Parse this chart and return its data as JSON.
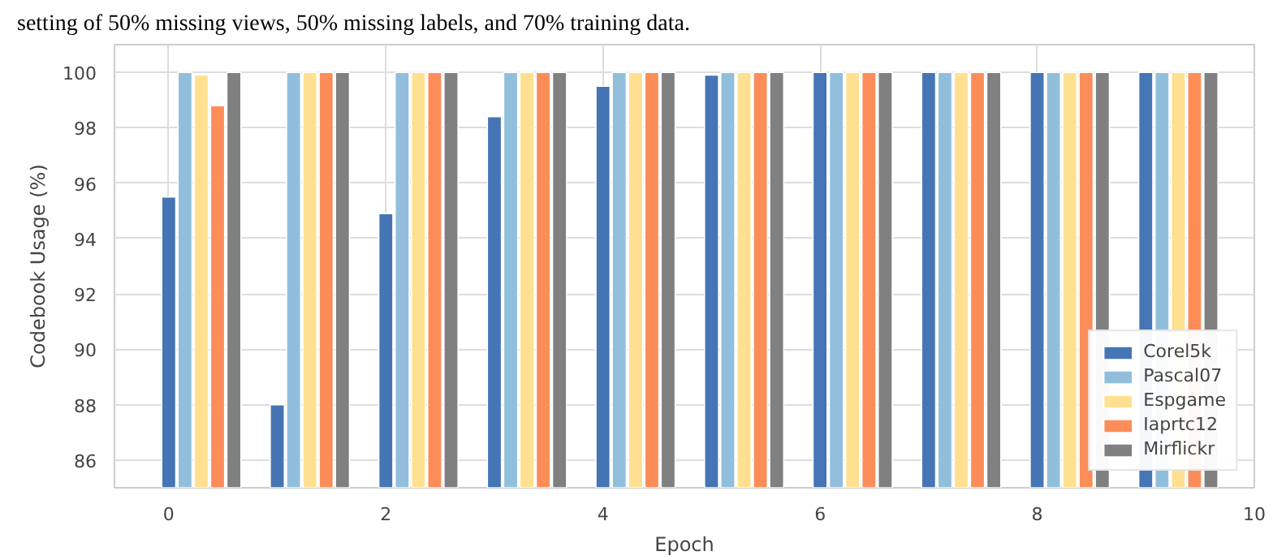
{
  "chart_data": {
    "type": "bar",
    "x": [
      0,
      1,
      2,
      3,
      4,
      5,
      6,
      7,
      8,
      9
    ],
    "xlabel": "Epoch",
    "ylabel": "Codebook Usage (%)",
    "annotations": [
      "setting of 50% missing views, 50% missing labels, and 70% training data."
    ],
    "series": [
      {
        "name": "Corel5k",
        "color": "#4575b4",
        "values": [
          95.5,
          88.0,
          94.9,
          98.4,
          99.5,
          99.9,
          100,
          100,
          100,
          100
        ]
      },
      {
        "name": "Pascal07",
        "color": "#91bfdb",
        "x": [
          0.15,
          1.15,
          2.15,
          3.15,
          4.15,
          5.15,
          6.15,
          7.15,
          8.15,
          9.15
        ],
        "values": [
          100,
          100,
          100,
          100,
          100,
          100,
          100,
          100,
          100,
          100
        ]
      },
      {
        "name": "Espgame",
        "color": "#fee090",
        "x": [
          0.3,
          1.3,
          2.3,
          3.3,
          4.3,
          5.3,
          6.3,
          7.3,
          8.3,
          9.3
        ],
        "values": [
          99.9,
          100,
          100,
          100,
          100,
          100,
          100,
          100,
          100,
          100
        ]
      },
      {
        "name": "Iaprtc12",
        "color": "#fc8d59",
        "x": [
          0.45,
          1.45,
          2.45,
          3.45,
          4.45,
          5.45,
          6.45,
          7.45,
          8.45,
          9.45
        ],
        "values": [
          98.8,
          100,
          100,
          100,
          100,
          100,
          100,
          100,
          100,
          100
        ]
      },
      {
        "name": "Mirflickr",
        "color": "#808080",
        "x": [
          0.6,
          1.6,
          2.6,
          3.6,
          4.6,
          5.6,
          6.6,
          7.6,
          8.6,
          9.6
        ],
        "values": [
          100,
          100,
          100,
          100,
          100,
          100,
          100,
          100,
          100,
          100
        ]
      }
    ],
    "xlim": [
      -0.5,
      10
    ],
    "ylim": [
      85,
      101
    ],
    "xticks": [
      0,
      2,
      4,
      6,
      8,
      10
    ],
    "yticks": [
      86,
      88,
      90,
      92,
      94,
      96,
      98,
      100
    ],
    "grid": true,
    "legend": "bottom right"
  }
}
